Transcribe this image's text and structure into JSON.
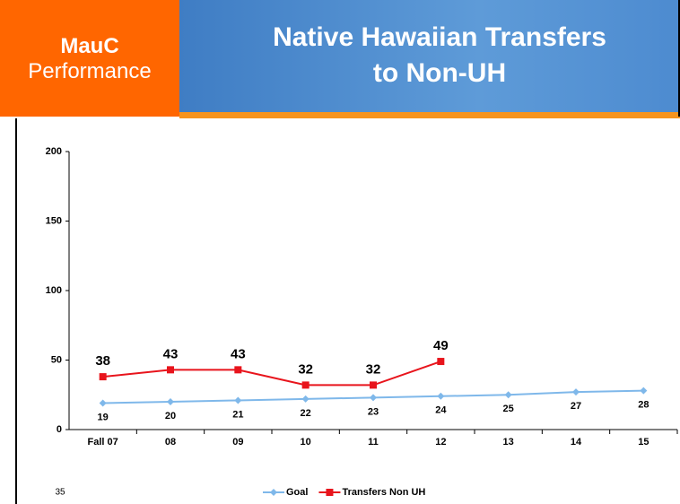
{
  "slide": {
    "brand": "MauC",
    "section": "Performance",
    "page_number": "35"
  },
  "chart_data": {
    "type": "line",
    "title": "Native Hawaiian Transfers to Non-UH",
    "categories": [
      "Fall 07",
      "08",
      "09",
      "10",
      "11",
      "12",
      "13",
      "14",
      "15"
    ],
    "series": [
      {
        "name": "Goal",
        "color": "#7fb8ea",
        "marker": "diamond",
        "values": [
          19,
          20,
          21,
          22,
          23,
          24,
          25,
          27,
          28
        ]
      },
      {
        "name": "Transfers Non UH",
        "color": "#e8141c",
        "marker": "square",
        "values": [
          38,
          43,
          43,
          32,
          32,
          49,
          null,
          null,
          null
        ]
      }
    ],
    "ylim": [
      0,
      200
    ],
    "yticks": [
      0,
      50,
      100,
      150,
      200
    ],
    "grid": false,
    "legend": "bottom"
  }
}
